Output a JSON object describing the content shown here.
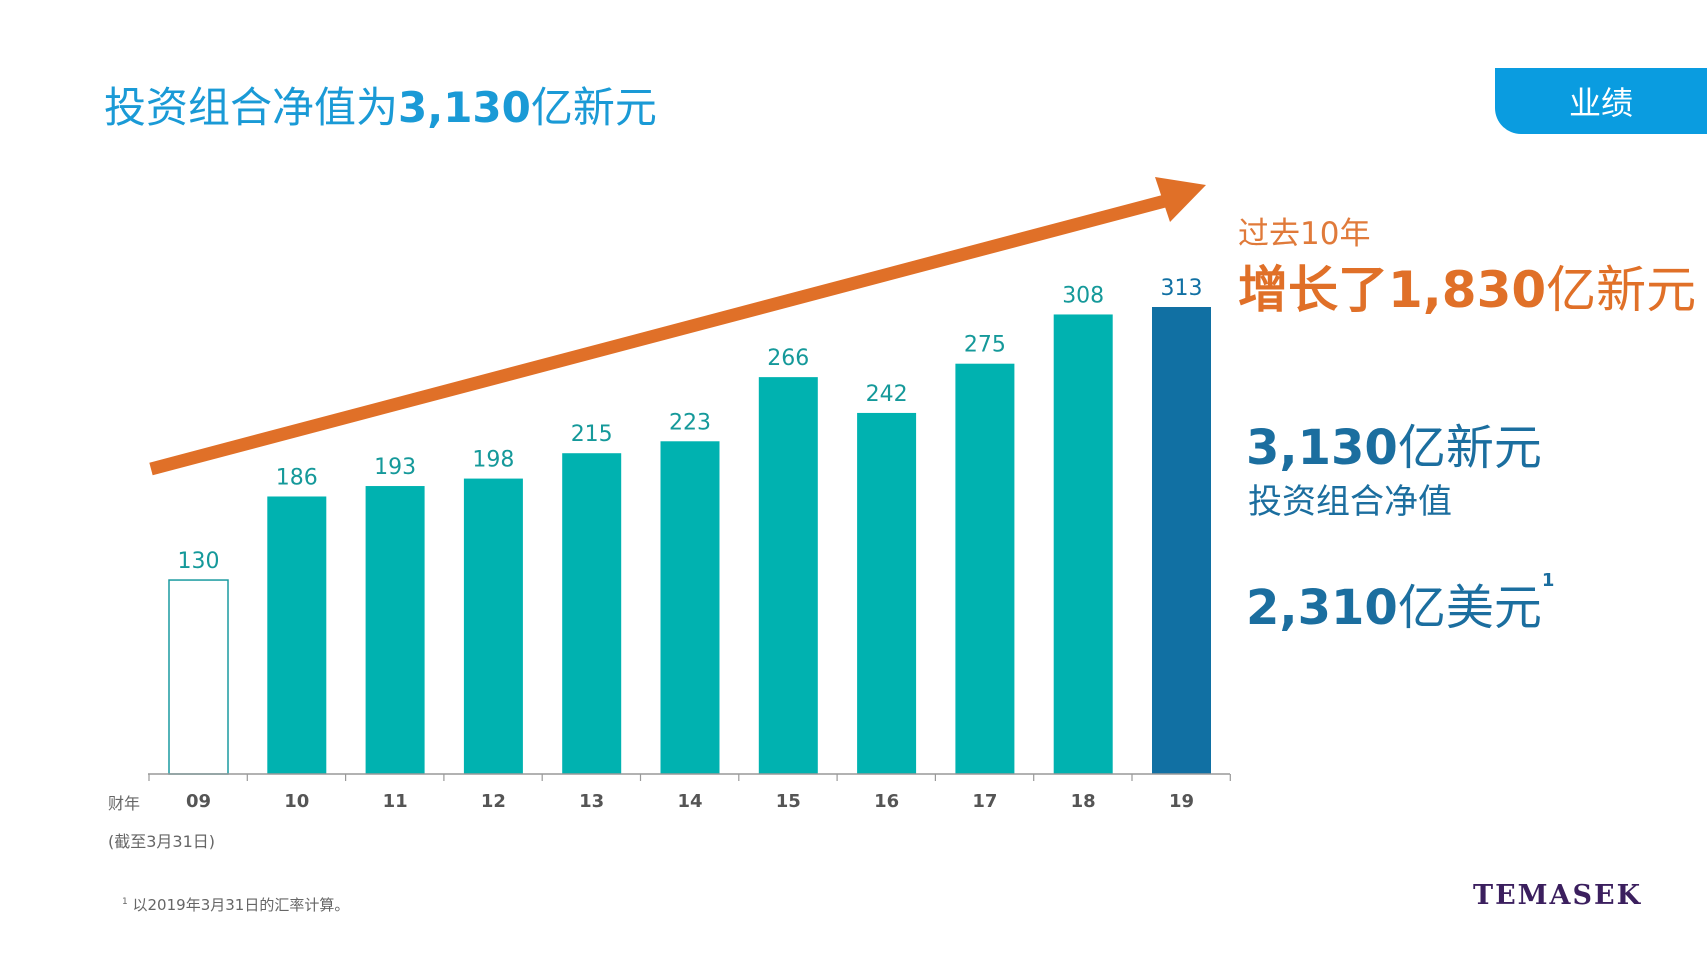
{
  "title": {
    "prefix": "投资组合净值为",
    "amount": "3,130",
    "suffix": "亿新元"
  },
  "tab_label": "业绩",
  "growth": {
    "line1": "过去10年",
    "line2_prefix": "增长了",
    "line2_amount": "1,830",
    "line2_suffix": "亿新元"
  },
  "nav": {
    "amount": "3,130",
    "unit": "亿新元",
    "label": "投资组合净值"
  },
  "usd": {
    "amount": "2,310",
    "unit": "亿美元",
    "footnote_mark": "1"
  },
  "axis": {
    "fy_label": "财年",
    "as_of": "(截至3月31日)"
  },
  "footnote": {
    "mark": "1",
    "text": "以2019年3月31日的汇率计算。"
  },
  "logo": "TEMASEK",
  "colors": {
    "bar": "#00b2b0",
    "highlight": "#1170a3",
    "outline": "#1a9aa0",
    "arrow": "#e07028",
    "label": "#15999a"
  },
  "chart_data": {
    "type": "bar",
    "title": "投资组合净值为3,130亿新元",
    "xlabel": "财年 (截至3月31日)",
    "ylabel": "",
    "categories": [
      "09",
      "10",
      "11",
      "12",
      "13",
      "14",
      "15",
      "16",
      "17",
      "18",
      "19"
    ],
    "values": [
      130,
      186,
      193,
      198,
      215,
      223,
      266,
      242,
      275,
      308,
      313
    ],
    "styles": [
      "outline",
      "filled",
      "filled",
      "filled",
      "filled",
      "filled",
      "filled",
      "filled",
      "filled",
      "filled",
      "highlight"
    ],
    "ylim": [
      0,
      313
    ],
    "grid": false,
    "annotation": "upward trend arrow"
  }
}
